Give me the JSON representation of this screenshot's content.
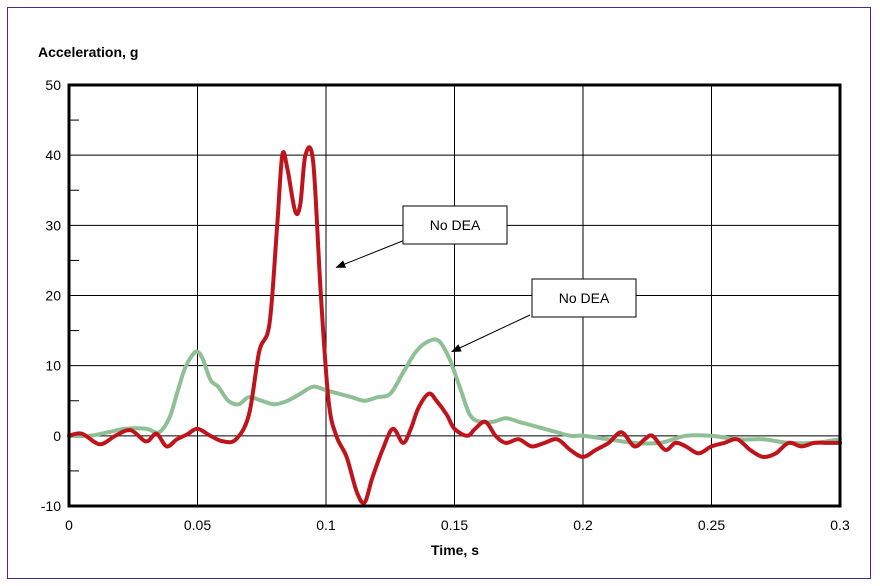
{
  "chart_data": {
    "type": "line",
    "title": "",
    "ylabel": "Acceleration, g",
    "xlabel": "Time, s",
    "xlim": [
      0,
      0.3
    ],
    "ylim": [
      -10,
      50
    ],
    "x_ticks": [
      "0",
      "0.05",
      "0.1",
      "0.15",
      "0.2",
      "0.25",
      "0.3"
    ],
    "y_ticks": [
      "-10",
      "0",
      "10",
      "20",
      "30",
      "40",
      "50"
    ],
    "grid": true,
    "colors": {
      "red_series": "#c0141c",
      "green_series": "#8fbf94"
    },
    "series": [
      {
        "color": "#c0141c",
        "x": [
          0,
          0.005,
          0.012,
          0.018,
          0.024,
          0.03,
          0.034,
          0.038,
          0.042,
          0.046,
          0.05,
          0.055,
          0.06,
          0.065,
          0.07,
          0.074,
          0.078,
          0.081,
          0.083,
          0.085,
          0.088,
          0.09,
          0.092,
          0.095,
          0.098,
          0.101,
          0.104,
          0.108,
          0.112,
          0.115,
          0.118,
          0.122,
          0.126,
          0.13,
          0.133,
          0.136,
          0.14,
          0.143,
          0.147,
          0.15,
          0.155,
          0.158,
          0.162,
          0.166,
          0.17,
          0.175,
          0.18,
          0.185,
          0.19,
          0.195,
          0.2,
          0.205,
          0.21,
          0.215,
          0.22,
          0.224,
          0.227,
          0.232,
          0.236,
          0.24,
          0.245,
          0.25,
          0.255,
          0.26,
          0.265,
          0.27,
          0.275,
          0.28,
          0.285,
          0.29,
          0.295,
          0.3
        ],
        "y": [
          0,
          0.3,
          -1.2,
          0,
          0.8,
          -0.8,
          0.3,
          -1.5,
          -0.5,
          0.2,
          1.0,
          0,
          -0.8,
          -0.5,
          3,
          12,
          16,
          30,
          40,
          38,
          32,
          33,
          40,
          39,
          20,
          5,
          0,
          -3,
          -8,
          -9.5,
          -6,
          -2,
          1,
          -1,
          1,
          4,
          6,
          5,
          3,
          1,
          0,
          1,
          2,
          0,
          -1,
          -0.5,
          -1.5,
          -1,
          -0.5,
          -2,
          -3,
          -2,
          -1,
          0.5,
          -1.5,
          -0.5,
          0,
          -2,
          -1,
          -1.5,
          -2.5,
          -1.5,
          -1,
          -0.5,
          -2,
          -3,
          -2.5,
          -1,
          -1.5,
          -1,
          -1,
          -1
        ]
      },
      {
        "color": "#8fbf94",
        "x": [
          0,
          0.008,
          0.015,
          0.022,
          0.03,
          0.035,
          0.039,
          0.042,
          0.045,
          0.048,
          0.05,
          0.052,
          0.055,
          0.058,
          0.062,
          0.066,
          0.07,
          0.075,
          0.08,
          0.085,
          0.09,
          0.095,
          0.1,
          0.105,
          0.11,
          0.115,
          0.12,
          0.125,
          0.13,
          0.135,
          0.14,
          0.144,
          0.148,
          0.152,
          0.156,
          0.16,
          0.165,
          0.17,
          0.175,
          0.18,
          0.185,
          0.19,
          0.195,
          0.2,
          0.21,
          0.22,
          0.23,
          0.24,
          0.25,
          0.26,
          0.27,
          0.28,
          0.29,
          0.3
        ],
        "y": [
          0,
          0,
          0.5,
          1.0,
          1.0,
          0.5,
          2.5,
          6,
          9.5,
          11.5,
          12,
          11,
          8,
          7,
          5,
          4.5,
          5.5,
          5,
          4.5,
          5,
          6,
          7,
          6.5,
          6,
          5.5,
          5,
          5.5,
          6,
          9,
          12,
          13.5,
          13.5,
          11,
          7,
          3,
          2,
          2,
          2.5,
          2,
          1.5,
          1,
          0.5,
          0,
          0,
          -0.5,
          -1,
          -1,
          0,
          0,
          -0.5,
          -0.5,
          -1,
          -1,
          -0.5
        ]
      }
    ],
    "annotations": [
      {
        "text": "No DEA",
        "arrow_to": [
          0.104,
          24
        ]
      },
      {
        "text": "No DEA",
        "arrow_to": [
          0.149,
          12
        ]
      }
    ]
  }
}
